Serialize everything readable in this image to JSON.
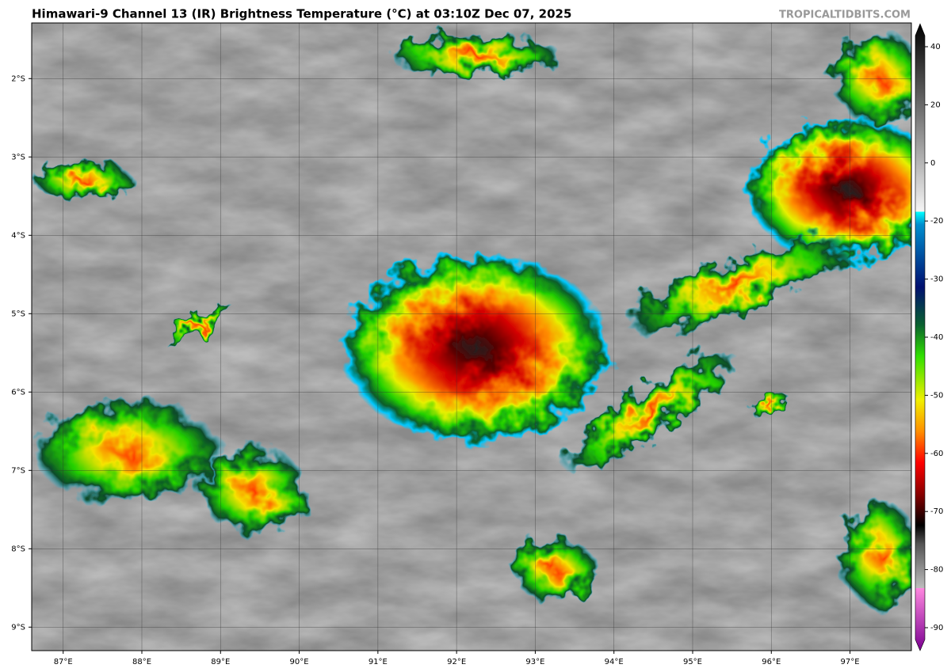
{
  "map": {
    "title": "Himawari-9 Channel 13 (IR) Brightness Temperature (°C) at 03:10Z Dec 07, 2025",
    "source": "TROPICALTIDBITS.COM",
    "xlim": [
      86.6,
      97.78
    ],
    "ylim": [
      -9.3,
      -1.29
    ],
    "xticks": [
      {
        "value": 87,
        "label": "87°E"
      },
      {
        "value": 88,
        "label": "88°E"
      },
      {
        "value": 89,
        "label": "89°E"
      },
      {
        "value": 90,
        "label": "90°E"
      },
      {
        "value": 91,
        "label": "91°E"
      },
      {
        "value": 92,
        "label": "92°E"
      },
      {
        "value": 93,
        "label": "93°E"
      },
      {
        "value": 94,
        "label": "94°E"
      },
      {
        "value": 95,
        "label": "95°E"
      },
      {
        "value": 96,
        "label": "96°E"
      },
      {
        "value": 97,
        "label": "97°E"
      }
    ],
    "yticks": [
      {
        "value": -2,
        "label": "2°S"
      },
      {
        "value": -3,
        "label": "3°S"
      },
      {
        "value": -4,
        "label": "4°S"
      },
      {
        "value": -5,
        "label": "5°S"
      },
      {
        "value": -6,
        "label": "6°S"
      },
      {
        "value": -7,
        "label": "7°S"
      },
      {
        "value": -8,
        "label": "8°S"
      },
      {
        "value": -9,
        "label": "9°S"
      }
    ],
    "colorbar": {
      "ticks": [
        40,
        20,
        0,
        -20,
        -30,
        -40,
        -50,
        -60,
        -70,
        -80,
        -90
      ]
    }
  }
}
